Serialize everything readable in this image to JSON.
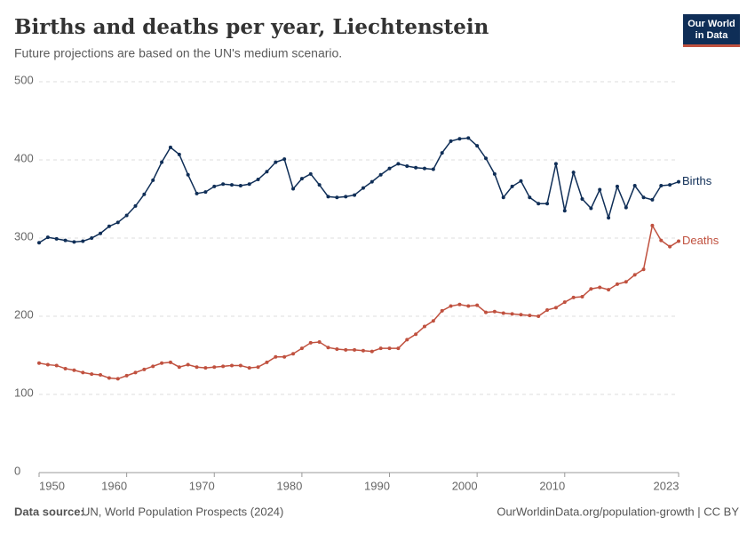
{
  "header": {
    "logo": [
      "Our World",
      "in Data"
    ]
  },
  "chart_data": {
    "type": "line",
    "title": "Births and deaths per year, Liechtenstein",
    "subtitle": "Future projections are based on the UN's medium scenario.",
    "x": [
      1950,
      1951,
      1952,
      1953,
      1954,
      1955,
      1956,
      1957,
      1958,
      1959,
      1960,
      1961,
      1962,
      1963,
      1964,
      1965,
      1966,
      1967,
      1968,
      1969,
      1970,
      1971,
      1972,
      1973,
      1974,
      1975,
      1976,
      1977,
      1978,
      1979,
      1980,
      1981,
      1982,
      1983,
      1984,
      1985,
      1986,
      1987,
      1988,
      1989,
      1990,
      1991,
      1992,
      1993,
      1994,
      1995,
      1996,
      1997,
      1998,
      1999,
      2000,
      2001,
      2002,
      2003,
      2004,
      2005,
      2006,
      2007,
      2008,
      2009,
      2010,
      2011,
      2012,
      2013,
      2014,
      2015,
      2016,
      2017,
      2018,
      2019,
      2020,
      2021,
      2022,
      2023
    ],
    "series": [
      {
        "name": "Births",
        "color": "#0f2e57",
        "values": [
          294,
          301,
          299,
          297,
          295,
          296,
          300,
          306,
          315,
          320,
          329,
          341,
          356,
          374,
          397,
          416,
          407,
          381,
          357,
          359,
          366,
          369,
          368,
          367,
          369,
          375,
          385,
          397,
          401,
          363,
          376,
          382,
          368,
          353,
          352,
          353,
          355,
          364,
          372,
          381,
          389,
          395,
          392,
          390,
          389,
          388,
          409,
          424,
          427,
          428,
          418,
          402,
          382,
          352,
          366,
          373,
          352,
          344,
          344,
          395,
          335,
          384,
          350,
          338,
          362,
          326,
          366,
          339,
          367,
          352,
          349,
          367,
          368,
          372
        ]
      },
      {
        "name": "Deaths",
        "color": "#c0513f",
        "values": [
          140,
          138,
          137,
          133,
          131,
          128,
          126,
          125,
          121,
          120,
          124,
          128,
          132,
          136,
          140,
          141,
          135,
          138,
          135,
          134,
          135,
          136,
          137,
          137,
          134,
          135,
          141,
          148,
          148,
          152,
          159,
          166,
          167,
          160,
          158,
          157,
          157,
          156,
          155,
          159,
          159,
          159,
          170,
          177,
          187,
          194,
          207,
          213,
          215,
          213,
          214,
          205,
          206,
          204,
          203,
          202,
          201,
          200,
          208,
          211,
          218,
          224,
          225,
          235,
          237,
          234,
          241,
          244,
          253,
          260,
          316,
          297,
          289,
          296
        ]
      }
    ],
    "xlim": [
      1950,
      2023
    ],
    "xticks": [
      1950,
      1960,
      1970,
      1980,
      1990,
      2000,
      2010,
      2023
    ],
    "ylim": [
      0,
      500
    ],
    "yticks": [
      0,
      100,
      200,
      300,
      400,
      500
    ],
    "grid": true
  },
  "footer": {
    "source_label": "Data source:",
    "source": "UN, World Population Prospects (2024)",
    "url": "OurWorldinData.org/population-growth | CC BY"
  }
}
